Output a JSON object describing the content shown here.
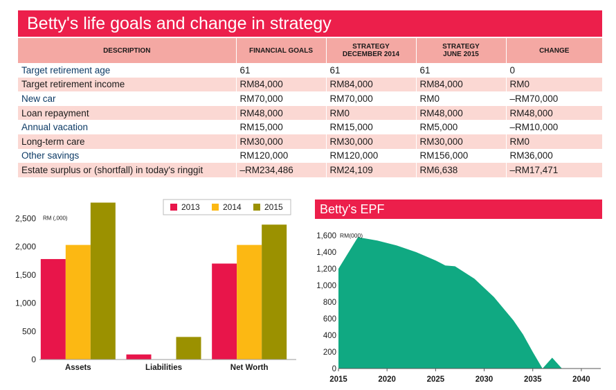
{
  "title": "Betty's life goals and change in strategy",
  "table": {
    "headers": [
      {
        "line1": "DESCRIPTION",
        "line2": ""
      },
      {
        "line1": "FINANCIAL GOALS",
        "line2": ""
      },
      {
        "line1": "STRATEGY",
        "line2": "DECEMBER 2014"
      },
      {
        "line1": "STRATEGY",
        "line2": "JUNE 2015"
      },
      {
        "line1": "CHANGE",
        "line2": ""
      }
    ],
    "rows": [
      [
        "Target retirement age",
        "61",
        "61",
        "61",
        "0"
      ],
      [
        "Target retirement income",
        "RM84,000",
        "RM84,000",
        "RM84,000",
        "RM0"
      ],
      [
        "New car",
        "RM70,000",
        "RM70,000",
        "RM0",
        "–RM70,000"
      ],
      [
        "Loan repayment",
        "RM48,000",
        "RM0",
        "RM48,000",
        "RM48,000"
      ],
      [
        "Annual vacation",
        "RM15,000",
        "RM15,000",
        "RM5,000",
        "–RM10,000"
      ],
      [
        "Long-term care",
        "RM30,000",
        "RM30,000",
        "RM30,000",
        "RM0"
      ],
      [
        "Other savings",
        "RM120,000",
        "RM120,000",
        "RM156,000",
        "RM36,000"
      ],
      [
        "Estate surplus or (shortfall) in today's ringgit",
        "–RM234,486",
        "RM24,109",
        "RM6,638",
        "–RM17,471"
      ]
    ]
  },
  "chart_data": [
    {
      "type": "bar",
      "title": "",
      "ylabel": "RM (,000)",
      "xlabel": "",
      "categories": [
        "Assets",
        "Liabilities",
        "Net Worth"
      ],
      "series": [
        {
          "name": "2013",
          "color": "#e8154a",
          "values": [
            1780,
            90,
            1700
          ]
        },
        {
          "name": "2014",
          "color": "#fcb813",
          "values": [
            2030,
            0,
            2030
          ]
        },
        {
          "name": "2015",
          "color": "#9b9100",
          "values": [
            2780,
            400,
            2390
          ]
        }
      ],
      "ylim": [
        0,
        2700
      ],
      "yticks": [
        0,
        500,
        1000,
        1500,
        2000,
        2500
      ],
      "ytick_labels": [
        "0",
        "500",
        "1,000",
        "1,500",
        "2,000",
        "2,500"
      ],
      "legend": "top",
      "grid": false
    },
    {
      "type": "area",
      "title": "Betty's EPF",
      "ylabel": "RM(000)",
      "xlabel": "",
      "color": "#10a982",
      "x": [
        2015,
        2017,
        2019,
        2021,
        2023,
        2025,
        2026,
        2027,
        2029,
        2031,
        2033,
        2034,
        2035,
        2036,
        2037,
        2038
      ],
      "y": [
        1200,
        1580,
        1540,
        1480,
        1400,
        1300,
        1240,
        1230,
        1080,
        860,
        580,
        410,
        200,
        0,
        130,
        0
      ],
      "xlim": [
        2015,
        2042
      ],
      "ylim": [
        0,
        1700
      ],
      "xticks": [
        2015,
        2020,
        2025,
        2030,
        2035,
        2040
      ],
      "yticks": [
        0,
        200,
        400,
        600,
        800,
        1000,
        1200,
        1400,
        1600
      ],
      "ytick_labels": [
        "0",
        "200",
        "400",
        "600",
        "800",
        "1,000",
        "1,200",
        "1,400",
        "1,600"
      ],
      "grid": false
    }
  ]
}
